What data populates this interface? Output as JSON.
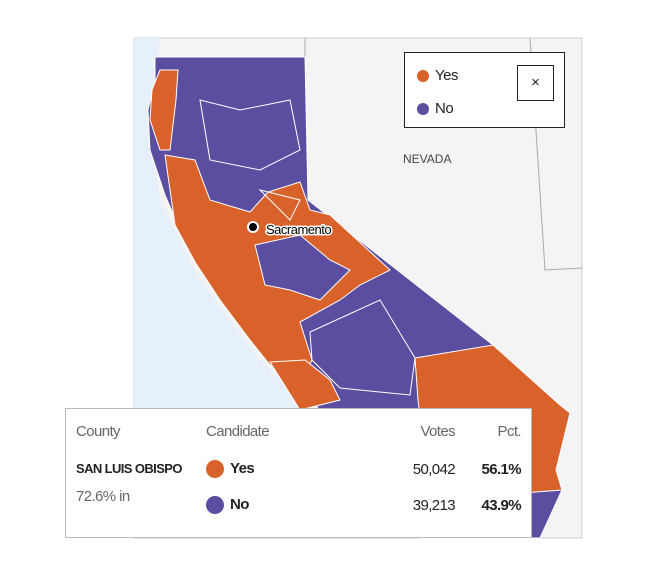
{
  "legend": {
    "items": [
      {
        "label": "Yes"
      },
      {
        "label": "No"
      }
    ],
    "close": "×"
  },
  "map": {
    "labels": [
      "NEVADA",
      "Sacramento"
    ]
  },
  "tooltip": {
    "headers": [
      "County",
      "Candidate",
      "Votes",
      "Pct."
    ],
    "county": "SAN LUIS OBISPO",
    "reporting": "72.6% in",
    "rows": [
      [
        "Yes",
        "50,042",
        "56.1%"
      ],
      [
        "No",
        "39,213",
        "43.9%"
      ]
    ]
  }
}
